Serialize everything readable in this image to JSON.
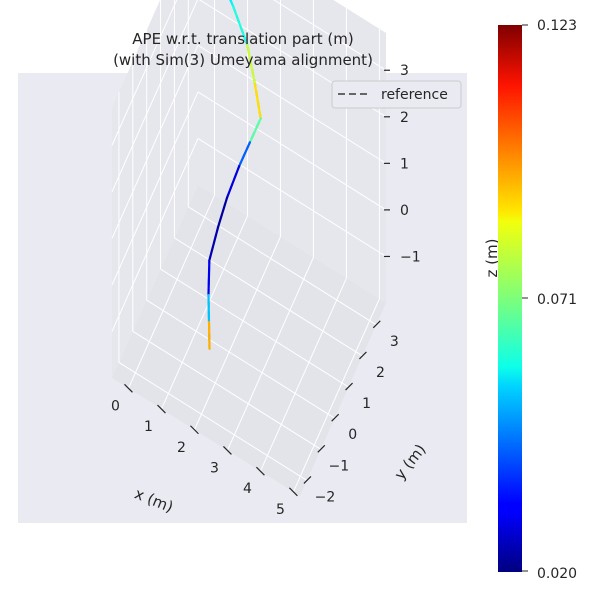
{
  "chart_data": {
    "type": "line",
    "projection": "3d",
    "title_line1": "APE w.r.t. translation part (m)",
    "title_line2": "(with Sim(3) Umeyama alignment)",
    "xlabel": "x (m)",
    "ylabel": "y (m)",
    "zlabel": "z (m)",
    "xlim": [
      -0.5,
      5.2
    ],
    "ylim": [
      -2.5,
      3.7
    ],
    "zlim": [
      -2.0,
      3.8
    ],
    "xticks": [
      "0",
      "1",
      "2",
      "3",
      "4",
      "5"
    ],
    "yticks": [
      "−2",
      "−1",
      "0",
      "1",
      "2",
      "3"
    ],
    "zticks": [
      "−1",
      "0",
      "1",
      "2",
      "3"
    ],
    "legend": {
      "entries": [
        "reference"
      ],
      "position": "top-right",
      "line_style": "dashed",
      "color": "#666666"
    },
    "colorbar": {
      "min": 0.02,
      "mid": 0.071,
      "max": 0.123,
      "labels": [
        "0.123",
        "0.071",
        "0.020"
      ],
      "colormap": "jet"
    },
    "series": [
      {
        "name": "reference",
        "points": [
          [
            0.2,
            3.3,
            3.3
          ],
          [
            0.9,
            2.9,
            3.0
          ],
          [
            1.5,
            2.5,
            2.7
          ],
          [
            1.9,
            2.1,
            2.3
          ],
          [
            2.2,
            1.8,
            1.9
          ],
          [
            2.0,
            1.5,
            1.5
          ],
          [
            1.8,
            1.2,
            1.1
          ],
          [
            1.6,
            0.8,
            0.6
          ],
          [
            1.5,
            0.4,
            0.2
          ],
          [
            1.4,
            0.0,
            -0.3
          ],
          [
            1.5,
            -0.3,
            -0.8
          ],
          [
            1.6,
            -0.5,
            -1.2
          ],
          [
            1.7,
            -0.7,
            -1.6
          ]
        ]
      },
      {
        "name": "",
        "points": [
          [
            0.2,
            3.3,
            3.3
          ],
          [
            0.9,
            2.9,
            3.0
          ],
          [
            1.5,
            2.5,
            2.7
          ],
          [
            1.9,
            2.1,
            2.3
          ],
          [
            2.2,
            1.8,
            1.9
          ],
          [
            2.0,
            1.5,
            1.5
          ],
          [
            1.8,
            1.2,
            1.1
          ],
          [
            1.6,
            0.8,
            0.6
          ],
          [
            1.5,
            0.4,
            0.2
          ],
          [
            1.4,
            0.0,
            -0.3
          ],
          [
            1.5,
            -0.3,
            -0.8
          ],
          [
            1.6,
            -0.5,
            -1.2
          ],
          [
            1.7,
            -0.7,
            -1.6
          ]
        ],
        "errors": [
          0.06,
          0.055,
          0.068,
          0.09,
          0.085,
          0.05,
          0.035,
          0.025,
          0.022,
          0.028,
          0.035,
          0.07,
          0.115
        ]
      }
    ]
  }
}
